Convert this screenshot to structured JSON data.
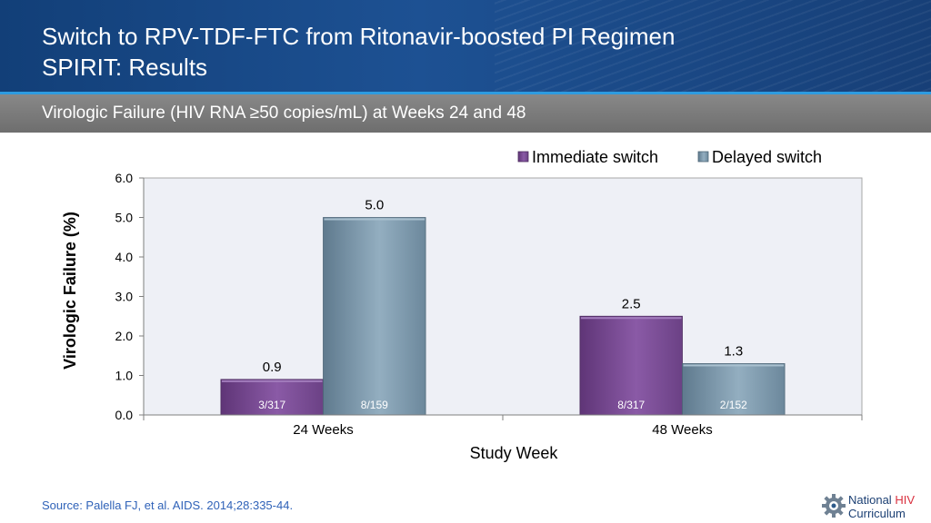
{
  "header": {
    "title_line1": "Switch to RPV-TDF-FTC from Ritonavir-boosted PI Regimen",
    "title_line2": "SPIRIT: Results",
    "subtitle": "Virologic Failure (HIV RNA ≥50 copies/mL) at Weeks 24 and 48"
  },
  "footer": {
    "source": "Source: Palella FJ, et al. AIDS. 2014;28:335-44.",
    "logo_line1": "National",
    "logo_hiv": "HIV",
    "logo_line2": "Curriculum",
    "logo_icon": "gear-icon"
  },
  "colors": {
    "immediate": "#7a4d94",
    "delayed": "#7b97aa",
    "plot_bg": "#eef0f6"
  },
  "chart_data": {
    "type": "bar",
    "title": "",
    "xlabel": "Study Week",
    "ylabel": "Virologic Failure (%)",
    "ylim": [
      0,
      6
    ],
    "yticks": [
      "0.0",
      "1.0",
      "2.0",
      "3.0",
      "4.0",
      "5.0",
      "6.0"
    ],
    "categories": [
      "24 Weeks",
      "48 Weeks"
    ],
    "legend_position": "top-right",
    "series": [
      {
        "name": "Immediate switch",
        "values": [
          0.9,
          2.5
        ],
        "value_labels": [
          "0.9",
          "2.5"
        ],
        "count_labels": [
          "3/317",
          "8/317"
        ]
      },
      {
        "name": "Delayed switch",
        "values": [
          5.0,
          1.3
        ],
        "value_labels": [
          "5.0",
          "1.3"
        ],
        "count_labels": [
          "8/159",
          "2/152"
        ]
      }
    ]
  }
}
